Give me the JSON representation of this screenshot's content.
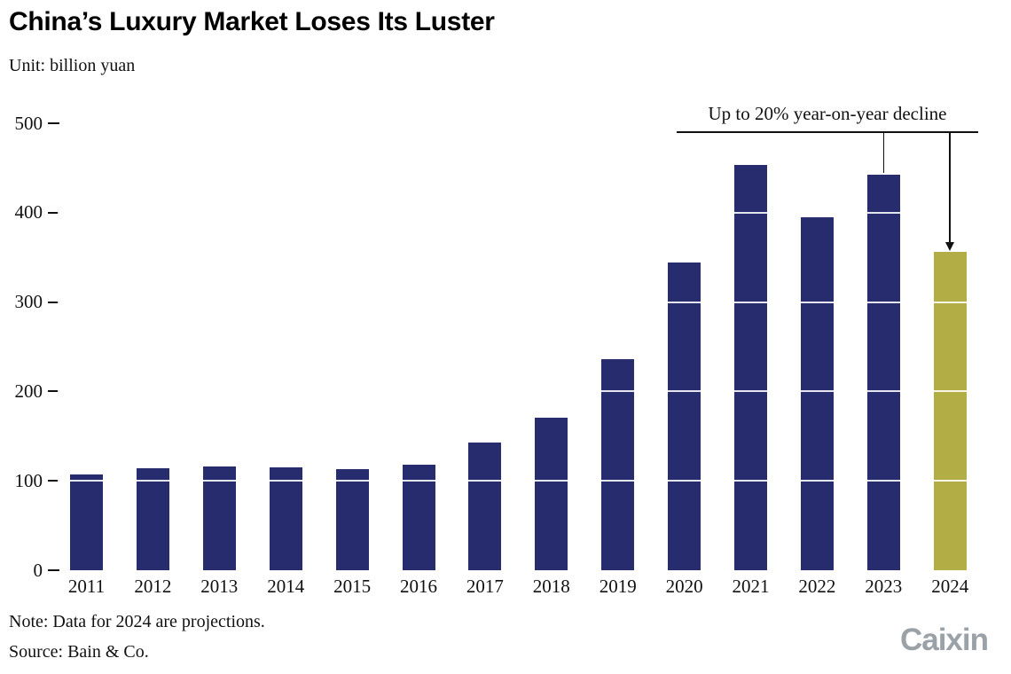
{
  "header": {
    "title": "China’s Luxury Market Loses Its Luster",
    "subtitle": "Unit: billion yuan"
  },
  "annotation": {
    "text": "Up to 20% year-on-year decline"
  },
  "footer": {
    "note": "Note: Data for 2024 are projections.",
    "source": "Source: Bain & Co.",
    "logo": "Caixin"
  },
  "chart_data": {
    "type": "bar",
    "title": "China’s Luxury Market Loses Its Luster",
    "unit": "billion yuan",
    "categories": [
      "2011",
      "2012",
      "2013",
      "2014",
      "2015",
      "2016",
      "2017",
      "2018",
      "2019",
      "2020",
      "2021",
      "2022",
      "2023",
      "2024"
    ],
    "values": [
      107,
      114,
      116,
      115,
      113,
      118,
      143,
      171,
      236,
      344,
      453,
      395,
      442,
      356
    ],
    "xlabel": "",
    "ylabel": "",
    "ylim": [
      0,
      500
    ],
    "yticks": [
      0,
      100,
      200,
      300,
      400,
      500
    ],
    "grid": "white horizontal lines over bars",
    "legend": "none",
    "bar_color": "#272c6e",
    "highlight_color": "#b2ae45",
    "highlight_index": 13,
    "highlight_meaning": "2024 projection, up to 20% year-on-year decline",
    "annotation": "Up to 20% year-on-year decline"
  }
}
